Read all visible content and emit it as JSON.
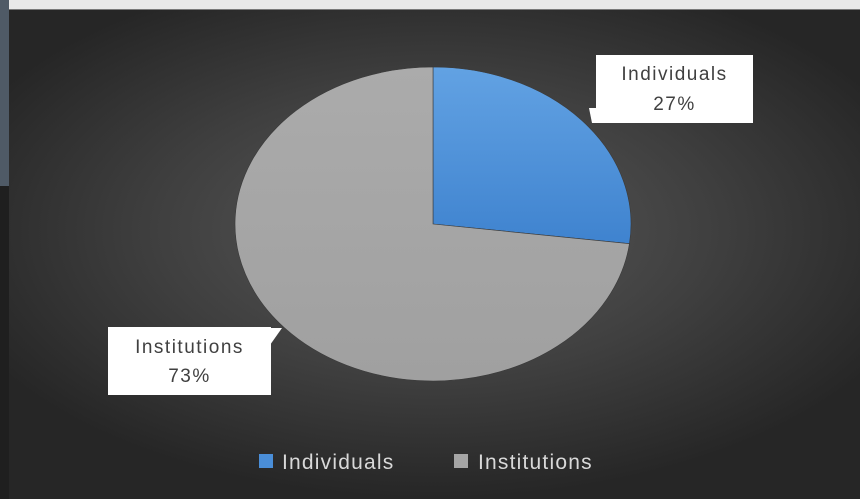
{
  "chart_data": {
    "type": "pie",
    "categories": [
      "Individuals",
      "Institutions"
    ],
    "values": [
      27,
      73
    ],
    "data_labels": [
      {
        "category": "Individuals",
        "percent": "27%"
      },
      {
        "category": "Institutions",
        "percent": "73%"
      }
    ],
    "colors": [
      "#4a8ed8",
      "#a5a5a5"
    ],
    "legend": {
      "position": "bottom",
      "entries": [
        "Individuals",
        "Institutions"
      ]
    },
    "title": ""
  }
}
